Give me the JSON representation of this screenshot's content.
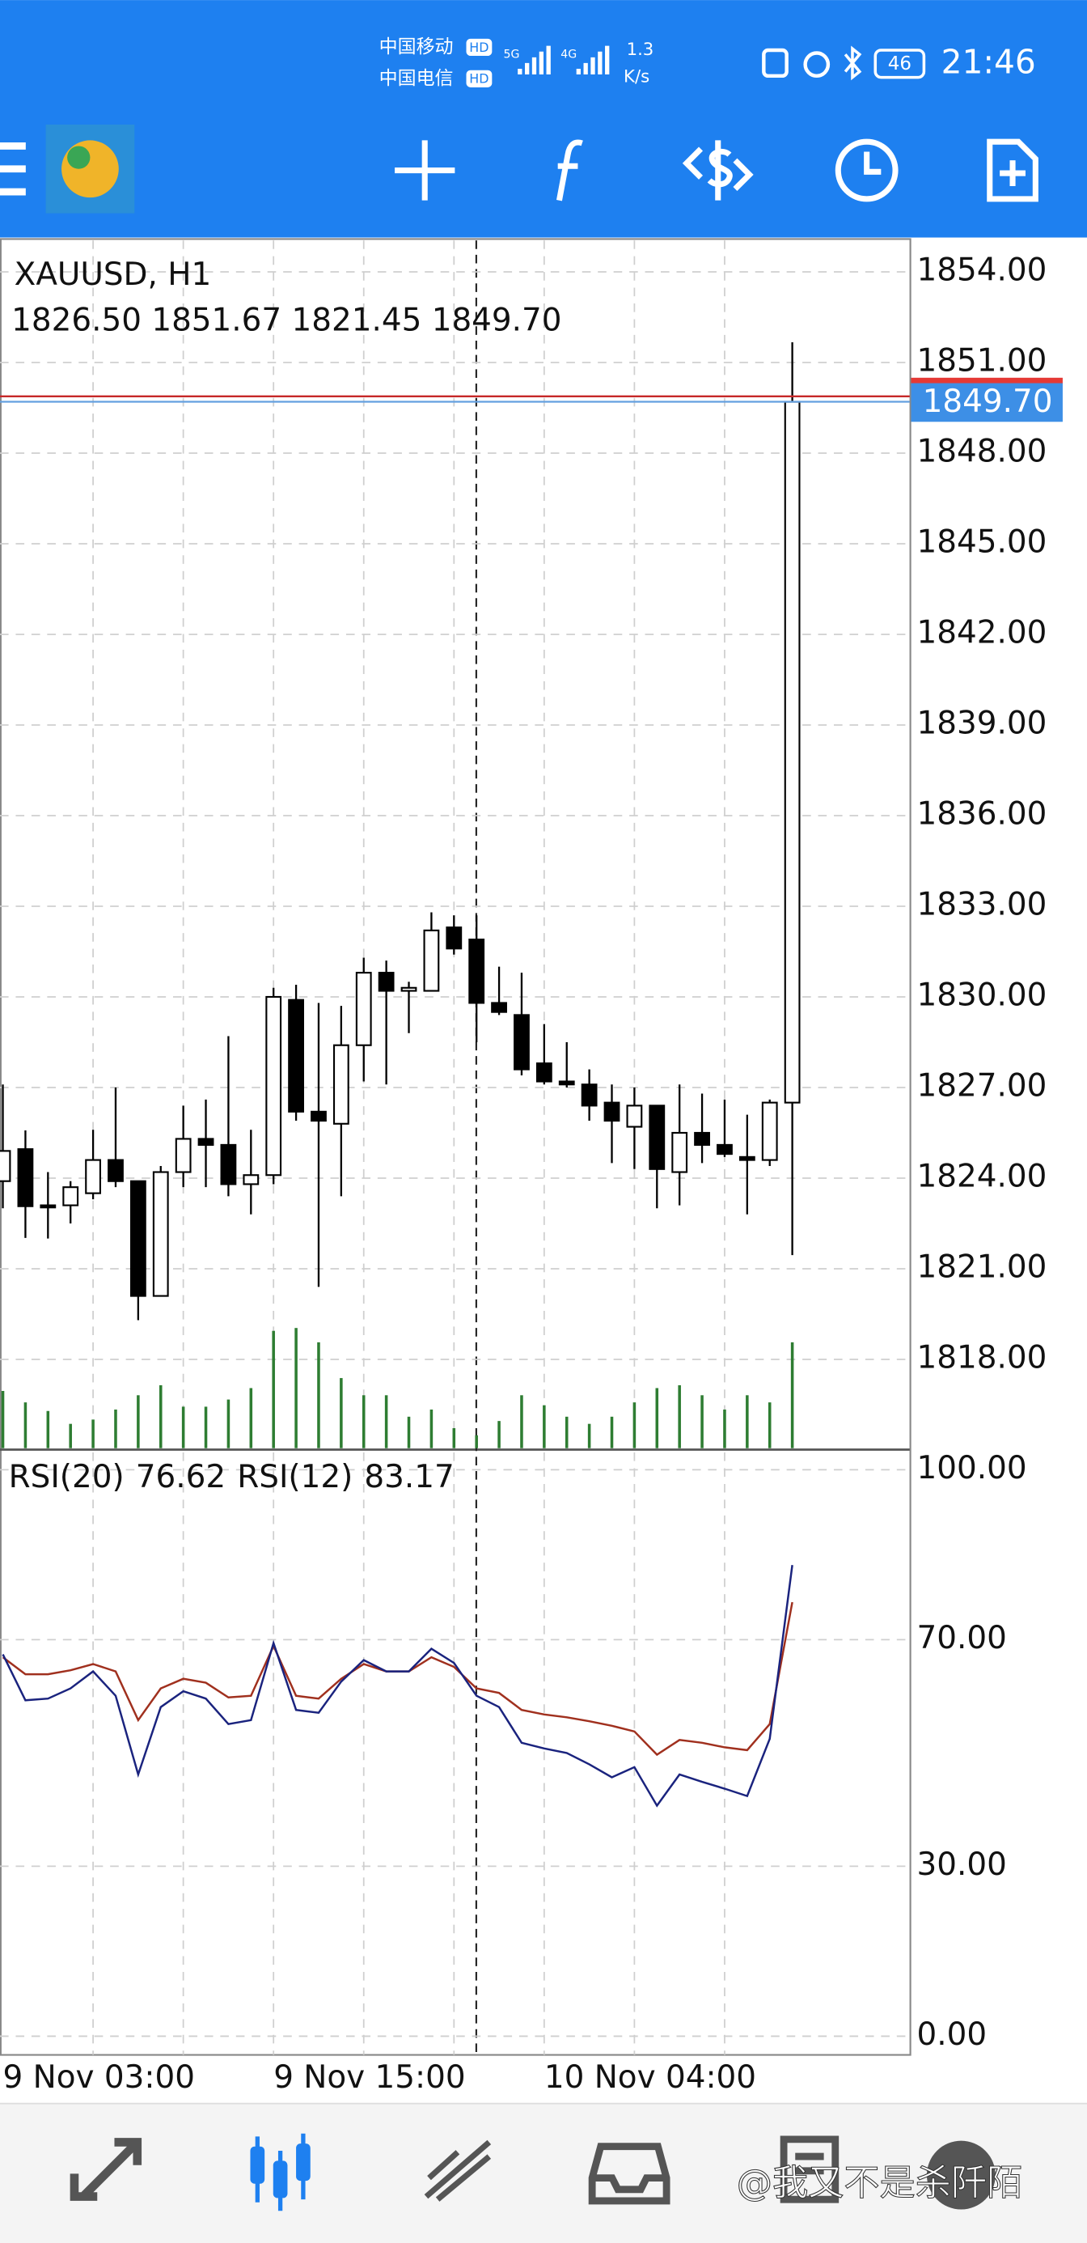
{
  "status_bar": {
    "carrier_1": "中国移动",
    "carrier_2": "中国电信",
    "hd": "HD",
    "network_1": "5G",
    "network_2": "4G",
    "speed": "1.3",
    "speed_unit": "K/s",
    "battery": "46",
    "time": "21:46"
  },
  "chart_data": [
    {
      "type": "candlestick",
      "title": "XAUUSD, H1",
      "subtitle": "1826.50 1851.67 1821.45 1849.70",
      "categories": [
        "9 Nov 03:00",
        null,
        null,
        null,
        null,
        null,
        null,
        null,
        null,
        null,
        null,
        null,
        "9 Nov 15:00",
        null,
        null,
        null,
        null,
        null,
        null,
        null,
        null,
        null,
        null,
        null,
        "10 Nov 04:00",
        null,
        null,
        null,
        null,
        null,
        null,
        null,
        null,
        null,
        null,
        null
      ],
      "open": [
        1823.9,
        1824.96,
        1823.1,
        1823.1,
        1823.5,
        1824.6,
        1823.9,
        1820.1,
        1824.2,
        1825.3,
        1825.1,
        1823.8,
        1824.1,
        1829.9,
        1826.2,
        1825.8,
        1828.4,
        1830.8,
        1830.2,
        1830.2,
        1832.3,
        1831.9,
        1829.8,
        1829.4,
        1827.8,
        1827.2,
        1827.1,
        1826.5,
        1825.7,
        1826.4,
        1824.2,
        1825.5,
        1825.1,
        1824.7,
        1824.6,
        1826.5
      ],
      "high": [
        1827.1,
        1825.58,
        1824.2,
        1823.9,
        1825.6,
        1827.0,
        1823.9,
        1824.4,
        1826.4,
        1826.6,
        1828.7,
        1825.6,
        1830.3,
        1830.4,
        1829.8,
        1829.7,
        1831.3,
        1831.2,
        1830.5,
        1832.8,
        1832.7,
        1832.7,
        1831.0,
        1830.8,
        1829.1,
        1828.5,
        1827.6,
        1827.1,
        1827.0,
        1826.4,
        1827.1,
        1826.8,
        1826.6,
        1826.1,
        1826.6,
        1851.67
      ],
      "low": [
        1823.0,
        1822.02,
        1822.0,
        1822.5,
        1823.3,
        1823.7,
        1819.3,
        1820.1,
        1823.7,
        1823.7,
        1823.4,
        1822.8,
        1823.8,
        1825.9,
        1820.4,
        1823.4,
        1827.2,
        1827.1,
        1828.8,
        1830.2,
        1831.4,
        1828.5,
        1829.4,
        1827.4,
        1827.1,
        1827.0,
        1825.9,
        1824.5,
        1824.3,
        1823.0,
        1823.1,
        1824.5,
        1824.7,
        1822.8,
        1824.4,
        1821.45
      ],
      "close": [
        1824.9,
        1823.07,
        1823.05,
        1823.7,
        1824.6,
        1823.9,
        1820.1,
        1824.2,
        1825.3,
        1825.1,
        1823.8,
        1824.1,
        1830.0,
        1826.2,
        1825.9,
        1828.4,
        1830.8,
        1830.2,
        1830.3,
        1832.2,
        1831.6,
        1829.8,
        1829.5,
        1827.6,
        1827.2,
        1827.1,
        1826.4,
        1825.9,
        1826.4,
        1824.3,
        1825.5,
        1825.1,
        1824.8,
        1824.6,
        1826.5,
        1849.7
      ],
      "volume": [
        40,
        32,
        26,
        17,
        20,
        27,
        37,
        44,
        29,
        29,
        34,
        42,
        82,
        84,
        74,
        49,
        37,
        37,
        22,
        27,
        14,
        9,
        19,
        37,
        30,
        22,
        17,
        22,
        32,
        42,
        44,
        37,
        27,
        37,
        32,
        74
      ],
      "up_color": "#ffffff",
      "down_color": "#000000",
      "volume_color": "#2e7d32",
      "ylim": [
        1815.06,
        1855.04
      ],
      "yticks": [
        {
          "value": 1818,
          "label": "1818.00"
        },
        {
          "value": 1821,
          "label": "1821.00"
        },
        {
          "value": 1824,
          "label": "1824.00"
        },
        {
          "value": 1827,
          "label": "1827.00"
        },
        {
          "value": 1830,
          "label": "1830.00"
        },
        {
          "value": 1833,
          "label": "1833.00"
        },
        {
          "value": 1836,
          "label": "1836.00"
        },
        {
          "value": 1839,
          "label": "1839.00"
        },
        {
          "value": 1842,
          "label": "1842.00"
        },
        {
          "value": 1845,
          "label": "1845.00"
        },
        {
          "value": 1848,
          "label": "1848.00"
        },
        {
          "value": 1851,
          "label": "1851.00"
        },
        {
          "value": 1854,
          "label": "1854.00"
        }
      ],
      "price_tag": {
        "value": 1849.7,
        "label": "1849.70"
      },
      "ask_line": 1849.88,
      "grid": true
    },
    {
      "type": "line",
      "ylim": [
        -3.3,
        103.3
      ],
      "yticks": [
        {
          "value": 0,
          "label": "0.00"
        },
        {
          "value": 30,
          "label": "30.00"
        },
        {
          "value": 70,
          "label": "70.00"
        },
        {
          "value": 100,
          "label": "100.00"
        }
      ],
      "series": [
        {
          "name": "RSI(20)",
          "color": "#a0301e",
          "values": [
            66.9,
            63.9,
            63.9,
            64.6,
            65.7,
            64.4,
            55.8,
            61.4,
            63.1,
            62.4,
            59.8,
            60.1,
            68.9,
            60.1,
            59.6,
            63.1,
            65.7,
            64.4,
            64.4,
            66.9,
            65.2,
            61.4,
            60.6,
            57.6,
            56.8,
            56.3,
            55.6,
            54.8,
            53.8,
            49.7,
            52.3,
            51.8,
            51.0,
            50.5,
            55.1,
            76.62
          ],
          "value_labels": [
            null,
            null,
            null,
            null,
            null,
            null,
            null,
            null,
            null,
            null,
            null,
            null,
            null,
            null,
            null,
            null,
            null,
            null,
            null,
            null,
            null,
            null,
            null,
            null,
            null,
            null,
            null,
            null,
            null,
            null,
            null,
            null,
            null,
            null,
            null,
            "76.62"
          ]
        },
        {
          "name": "RSI(12)",
          "color": "#1a237e",
          "values": [
            67.4,
            59.3,
            59.6,
            61.4,
            64.4,
            60.1,
            46.2,
            58.1,
            60.9,
            59.6,
            55.1,
            55.8,
            69.4,
            57.6,
            57.1,
            62.6,
            66.4,
            64.4,
            64.4,
            68.4,
            65.9,
            60.1,
            58.1,
            51.8,
            50.8,
            50.0,
            48.0,
            45.7,
            47.5,
            40.7,
            46.2,
            44.9,
            43.7,
            42.4,
            52.5,
            83.17
          ],
          "value_labels": [
            null,
            null,
            null,
            null,
            null,
            null,
            null,
            null,
            null,
            null,
            null,
            null,
            null,
            null,
            null,
            null,
            null,
            null,
            null,
            null,
            null,
            null,
            null,
            null,
            null,
            null,
            null,
            null,
            null,
            null,
            null,
            null,
            null,
            null,
            null,
            "83.17"
          ]
        }
      ],
      "grid": true
    }
  ],
  "watermark": "@我又不是杀阡陌"
}
